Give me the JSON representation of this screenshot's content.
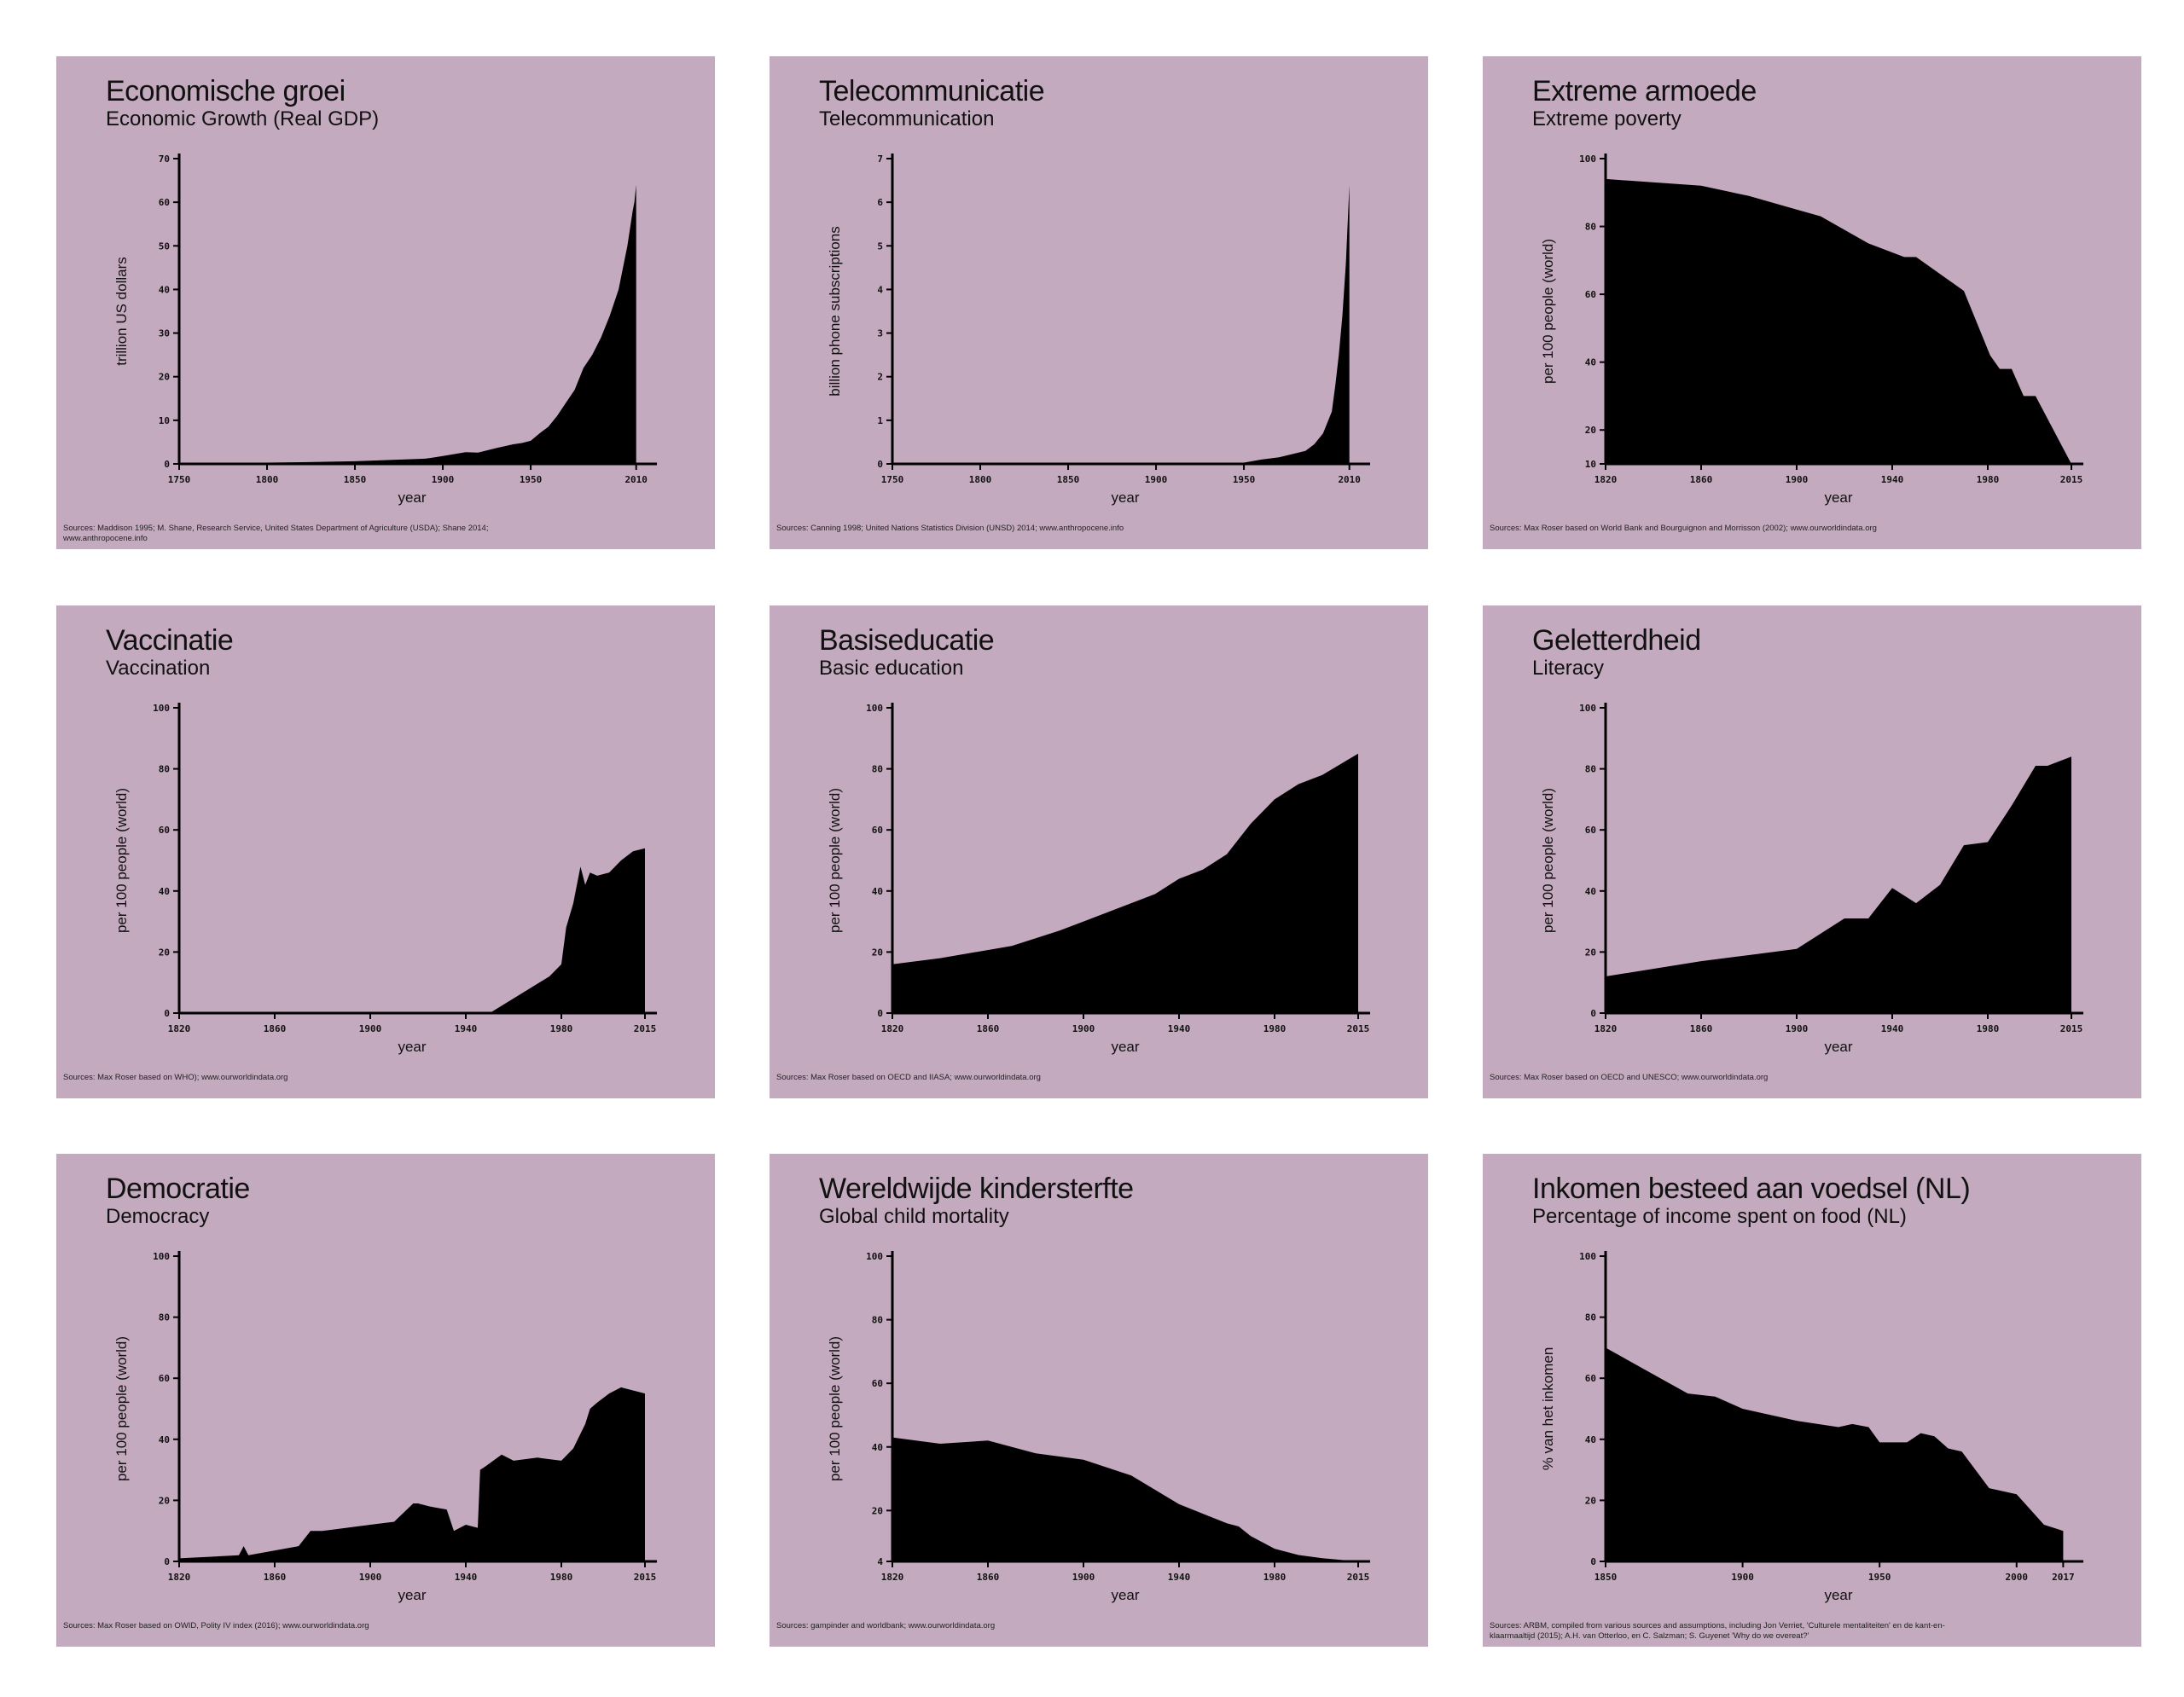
{
  "colors": {
    "panel": "#c4aabe",
    "fill": "#000000",
    "text": "#111111"
  },
  "chart_data": [
    {
      "type": "area",
      "title": "Economische groei",
      "subtitle": "Economic Growth (Real GDP)",
      "xlabel": "year",
      "ylabel": "trillion US dollars",
      "xlim": [
        1750,
        2015
      ],
      "ylim": [
        0,
        70
      ],
      "xticks": [
        1750,
        1800,
        1850,
        1900,
        1950,
        2010
      ],
      "xtick_labels": [
        "1750",
        "1800",
        "1850",
        "1900",
        "1950",
        "2010"
      ],
      "yticks": [
        0,
        10,
        20,
        30,
        40,
        50,
        60,
        70
      ],
      "ytick_labels": [
        "0",
        "10",
        "20",
        "30",
        "40",
        "50",
        "60",
        "70"
      ],
      "x": [
        1750,
        1800,
        1820,
        1850,
        1870,
        1890,
        1900,
        1913,
        1920,
        1930,
        1940,
        1945,
        1950,
        1955,
        1960,
        1965,
        1970,
        1975,
        1980,
        1985,
        1990,
        1995,
        2000,
        2005,
        2008,
        2009,
        2010
      ],
      "values": [
        0.2,
        0.3,
        0.4,
        0.6,
        0.9,
        1.2,
        1.8,
        2.7,
        2.6,
        3.6,
        4.5,
        4.8,
        5.3,
        7,
        8.5,
        11,
        14,
        17,
        22,
        25,
        29,
        34,
        40,
        50,
        58,
        60,
        64
      ],
      "source": "Sources: Maddison 1995; M. Shane, Research Service, United States Department of Agriculture (USDA); Shane 2014; www.anthropocene.info"
    },
    {
      "type": "area",
      "title": "Telecommunicatie",
      "subtitle": "Telecommunication",
      "xlabel": "year",
      "ylabel": "billion phone subscriptions",
      "xlim": [
        1750,
        2015
      ],
      "ylim": [
        0,
        7
      ],
      "xticks": [
        1750,
        1800,
        1850,
        1900,
        1950,
        2010
      ],
      "xtick_labels": [
        "1750",
        "1800",
        "1850",
        "1900",
        "1950",
        "2010"
      ],
      "yticks": [
        0,
        1,
        2,
        3,
        4,
        5,
        6,
        7
      ],
      "ytick_labels": [
        "0",
        "1",
        "2",
        "3",
        "4",
        "5",
        "6",
        "7"
      ],
      "x": [
        1750,
        1900,
        1950,
        1960,
        1970,
        1980,
        1985,
        1990,
        1995,
        2000,
        2002,
        2004,
        2006,
        2008,
        2010
      ],
      "values": [
        0,
        0,
        0.03,
        0.1,
        0.15,
        0.25,
        0.3,
        0.45,
        0.7,
        1.2,
        1.8,
        2.5,
        3.4,
        4.6,
        6.4
      ],
      "source": "Sources: Canning 1998; United Nations Statistics Division (UNSD) 2014; www.anthropocene.info"
    },
    {
      "type": "area",
      "title": "Extreme armoede",
      "subtitle": "Extreme poverty",
      "xlabel": "year",
      "ylabel": "per 100 people (world)",
      "xlim": [
        1820,
        2015
      ],
      "ylim": [
        10,
        100
      ],
      "xticks": [
        1820,
        1860,
        1900,
        1940,
        1980,
        2015
      ],
      "xtick_labels": [
        "1820",
        "1860",
        "1900",
        "1940",
        "1980",
        "2015"
      ],
      "yticks": [
        10,
        20,
        40,
        60,
        80,
        100
      ],
      "ytick_labels": [
        "10",
        "20",
        "40",
        "60",
        "80",
        "100"
      ],
      "x": [
        1820,
        1860,
        1880,
        1900,
        1910,
        1920,
        1930,
        1945,
        1950,
        1960,
        1970,
        1981,
        1985,
        1990,
        1995,
        2000,
        2015
      ],
      "values": [
        94,
        92,
        89,
        85,
        83,
        79,
        75,
        71,
        71,
        66,
        61,
        42,
        38,
        38,
        30,
        30,
        10
      ],
      "source": "Sources: Max Roser based on World Bank and Bourguignon and Morrisson (2002); www.ourworldindata.org"
    },
    {
      "type": "area",
      "title": "Vaccinatie",
      "subtitle": "Vaccination",
      "xlabel": "year",
      "ylabel": "per 100 people (world)",
      "xlim": [
        1820,
        2015
      ],
      "ylim": [
        0,
        100
      ],
      "xticks": [
        1820,
        1860,
        1900,
        1940,
        1980,
        2015
      ],
      "xtick_labels": [
        "1820",
        "1860",
        "1900",
        "1940",
        "1980",
        "2015"
      ],
      "yticks": [
        0,
        20,
        40,
        60,
        80,
        100
      ],
      "ytick_labels": [
        "0",
        "20",
        "40",
        "60",
        "80",
        "100"
      ],
      "x": [
        1820,
        1950,
        1975,
        1980,
        1982,
        1985,
        1988,
        1990,
        1992,
        1995,
        2000,
        2005,
        2010,
        2015
      ],
      "values": [
        0,
        0,
        12,
        16,
        28,
        36,
        48,
        42,
        46,
        45,
        46,
        50,
        53,
        54
      ],
      "source": "Sources: Max Roser based on WHO); www.ourworldindata.org"
    },
    {
      "type": "area",
      "title": "Basiseducatie",
      "subtitle": "Basic education",
      "xlabel": "year",
      "ylabel": "per 100 people (world)",
      "xlim": [
        1820,
        2015
      ],
      "ylim": [
        0,
        100
      ],
      "xticks": [
        1820,
        1860,
        1900,
        1940,
        1980,
        2015
      ],
      "xtick_labels": [
        "1820",
        "1860",
        "1900",
        "1940",
        "1980",
        "2015"
      ],
      "yticks": [
        0,
        20,
        40,
        60,
        80,
        100
      ],
      "ytick_labels": [
        "0",
        "20",
        "40",
        "60",
        "80",
        "100"
      ],
      "x": [
        1820,
        1840,
        1870,
        1890,
        1900,
        1910,
        1920,
        1930,
        1940,
        1950,
        1960,
        1970,
        1980,
        1990,
        2000,
        2015
      ],
      "values": [
        16,
        18,
        22,
        27,
        30,
        33,
        36,
        39,
        44,
        47,
        52,
        62,
        70,
        75,
        78,
        85
      ],
      "source": "Sources: Max Roser based on OECD and IIASA; www.ourworldindata.org"
    },
    {
      "type": "area",
      "title": "Geletterdheid",
      "subtitle": "Literacy",
      "xlabel": "year",
      "ylabel": "per 100 people (world)",
      "xlim": [
        1820,
        2015
      ],
      "ylim": [
        0,
        100
      ],
      "xticks": [
        1820,
        1860,
        1900,
        1940,
        1980,
        2015
      ],
      "xtick_labels": [
        "1820",
        "1860",
        "1900",
        "1940",
        "1980",
        "2015"
      ],
      "yticks": [
        0,
        20,
        40,
        60,
        80,
        100
      ],
      "ytick_labels": [
        "0",
        "20",
        "40",
        "60",
        "80",
        "100"
      ],
      "x": [
        1820,
        1860,
        1880,
        1900,
        1910,
        1920,
        1930,
        1940,
        1950,
        1960,
        1970,
        1980,
        1990,
        2000,
        2005,
        2015
      ],
      "values": [
        12,
        17,
        19,
        21,
        26,
        31,
        31,
        41,
        36,
        42,
        55,
        56,
        68,
        81,
        81,
        84
      ],
      "source": "Sources: Max Roser based on OECD and UNESCO; www.ourworldindata.org"
    },
    {
      "type": "area",
      "title": "Democratie",
      "subtitle": "Democracy",
      "xlabel": "year",
      "ylabel": "per 100 people (world)",
      "xlim": [
        1820,
        2015
      ],
      "ylim": [
        0,
        100
      ],
      "xticks": [
        1820,
        1860,
        1900,
        1940,
        1980,
        2015
      ],
      "xtick_labels": [
        "1820",
        "1860",
        "1900",
        "1940",
        "1980",
        "2015"
      ],
      "yticks": [
        0,
        20,
        40,
        60,
        80,
        100
      ],
      "ytick_labels": [
        "0",
        "20",
        "40",
        "60",
        "80",
        "100"
      ],
      "x": [
        1820,
        1845,
        1847,
        1849,
        1870,
        1875,
        1880,
        1900,
        1910,
        1918,
        1920,
        1925,
        1932,
        1935,
        1940,
        1945,
        1946,
        1948,
        1955,
        1960,
        1970,
        1980,
        1985,
        1990,
        1992,
        1995,
        2000,
        2005,
        2010,
        2015
      ],
      "values": [
        1,
        2,
        5,
        2,
        5,
        10,
        10,
        12,
        13,
        19,
        19,
        18,
        17,
        10,
        12,
        11,
        30,
        31,
        35,
        33,
        34,
        33,
        37,
        45,
        50,
        52,
        55,
        57,
        56,
        55
      ],
      "source": "Sources: Max Roser based on OWID, Polity IV index (2016); www.ourworldindata.org"
    },
    {
      "type": "area",
      "title": "Wereldwijde kindersterfte",
      "subtitle": "Global child mortality",
      "xlabel": "year",
      "ylabel": "per 100 people (world)",
      "xlim": [
        1820,
        2015
      ],
      "ylim": [
        4,
        100
      ],
      "xticks": [
        1820,
        1860,
        1900,
        1940,
        1980,
        2015
      ],
      "xtick_labels": [
        "1820",
        "1860",
        "1900",
        "1940",
        "1980",
        "2015"
      ],
      "yticks": [
        4,
        20,
        40,
        60,
        80,
        100
      ],
      "ytick_labels": [
        "4",
        "20",
        "40",
        "60",
        "80",
        "100"
      ],
      "x": [
        1820,
        1840,
        1860,
        1880,
        1900,
        1920,
        1940,
        1960,
        1965,
        1970,
        1980,
        1990,
        2000,
        2015
      ],
      "values": [
        43,
        41,
        42,
        38,
        36,
        31,
        22,
        16,
        15,
        12,
        8,
        6,
        5,
        4
      ],
      "source": "Sources: gampinder and worldbank; www.ourworldindata.org"
    },
    {
      "type": "area",
      "title": "Inkomen besteed aan voedsel (NL)",
      "subtitle": "Percentage of income spent on food (NL)",
      "xlabel": "year",
      "ylabel": "% van het inkomen",
      "xlim": [
        1850,
        2020
      ],
      "ylim": [
        0,
        100
      ],
      "xticks": [
        1850,
        1900,
        1950,
        2000,
        2017
      ],
      "xtick_labels": [
        "1850",
        "1900",
        "1950",
        "2000",
        "2017"
      ],
      "yticks": [
        0,
        20,
        40,
        60,
        80,
        100
      ],
      "ytick_labels": [
        "0",
        "20",
        "40",
        "60",
        "80",
        "100"
      ],
      "x": [
        1850,
        1870,
        1880,
        1890,
        1900,
        1920,
        1935,
        1940,
        1946,
        1950,
        1960,
        1965,
        1970,
        1975,
        1980,
        1990,
        2000,
        2010,
        2017
      ],
      "values": [
        70,
        60,
        55,
        54,
        50,
        46,
        44,
        45,
        44,
        39,
        39,
        42,
        41,
        37,
        36,
        24,
        22,
        12,
        10
      ],
      "source": "Sources: ARBM, compiled from various sources and assumptions, including Jon Verriet, 'Culturele mentaliteiten' en de kant-en-klaarmaaltijd (2015); A.H. van Otterloo, en C. Salzman; S. Guyenet 'Why do we overeat?'"
    }
  ]
}
